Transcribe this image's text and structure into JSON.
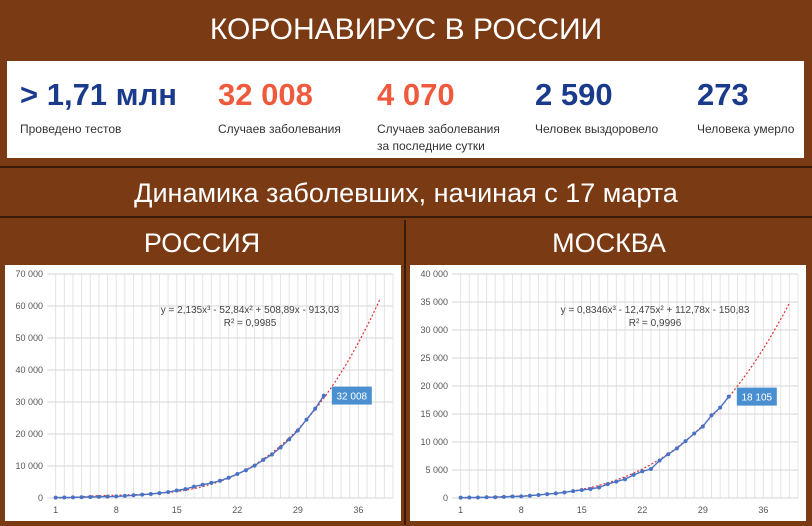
{
  "header": {
    "title": "КОРОНАВИРУС В РОССИИ"
  },
  "stats": [
    {
      "value": "> 1,71 млн",
      "label": "Проведено тестов",
      "color": "#1a3a8c"
    },
    {
      "value": "32 008",
      "label": "Случаев заболевания",
      "color": "#f05a3c"
    },
    {
      "value": "4 070",
      "label": "Случаев заболевания",
      "label2": "за последние сутки",
      "color": "#f05a3c"
    },
    {
      "value": "2 590",
      "label": "Человек выздоровело",
      "color": "#1a3a8c"
    },
    {
      "value": "273",
      "label": "Человека умерло",
      "color": "#1a3a8c"
    }
  ],
  "subtitle": "Динамика заболевших, начиная с 17 марта",
  "regions": {
    "left": "РОССИЯ",
    "right": "МОСКВА"
  },
  "chart_data": [
    {
      "type": "scatter",
      "title": "",
      "xlabel": "",
      "ylabel": "",
      "xlim": [
        0,
        40
      ],
      "ylim": [
        0,
        70000
      ],
      "xticks": [
        1,
        8,
        15,
        22,
        29,
        36
      ],
      "yticks": [
        0,
        10000,
        20000,
        30000,
        40000,
        50000,
        60000,
        70000
      ],
      "ytick_labels": [
        "0",
        "10 000",
        "20 000",
        "30 000",
        "40 000",
        "50 000",
        "60 000",
        "70 000"
      ],
      "grid": true,
      "x": [
        1,
        2,
        3,
        4,
        5,
        6,
        7,
        8,
        9,
        10,
        11,
        12,
        13,
        14,
        15,
        16,
        17,
        18,
        19,
        20,
        21,
        22,
        23,
        24,
        25,
        26,
        27,
        28,
        29,
        30,
        31,
        32
      ],
      "y": [
        114,
        147,
        199,
        253,
        306,
        367,
        438,
        495,
        658,
        840,
        1036,
        1264,
        1534,
        1836,
        2337,
        2777,
        3548,
        4149,
        4731,
        5389,
        6343,
        7497,
        8672,
        10131,
        11917,
        13584,
        15770,
        18328,
        21102,
        24490,
        27938,
        32008
      ],
      "trend": {
        "equation": "y = 2,135x³ - 52,84x² + 508,89x - 913,03",
        "r2": "R² = 0,9985",
        "a": 2.135,
        "b": -52.84,
        "c": 508.89,
        "d": -913.03,
        "x_end": 38.5
      },
      "last_label": "32 008",
      "colors": {
        "points": "#4a72c4",
        "trend": "#e03030",
        "badge": "#4a8fcf"
      }
    },
    {
      "type": "scatter",
      "title": "",
      "xlabel": "",
      "ylabel": "",
      "xlim": [
        0,
        40
      ],
      "ylim": [
        0,
        40000
      ],
      "xticks": [
        1,
        8,
        15,
        22,
        29,
        36
      ],
      "yticks": [
        0,
        5000,
        10000,
        15000,
        20000,
        25000,
        30000,
        35000,
        40000
      ],
      "ytick_labels": [
        "0",
        "5 000",
        "10 000",
        "15 000",
        "20 000",
        "25 000",
        "30 000",
        "35 000",
        "40 000"
      ],
      "grid": true,
      "x": [
        1,
        2,
        3,
        4,
        5,
        6,
        7,
        8,
        9,
        10,
        11,
        12,
        13,
        14,
        15,
        16,
        17,
        18,
        19,
        20,
        21,
        22,
        23,
        24,
        25,
        26,
        27,
        28,
        29,
        30,
        31,
        32
      ],
      "y": [
        56,
        86,
        98,
        131,
        137,
        191,
        262,
        290,
        410,
        546,
        703,
        817,
        1014,
        1226,
        1418,
        1613,
        1880,
        2475,
        2923,
        3357,
        4121,
        4775,
        5181,
        6698,
        7822,
        8852,
        10158,
        11513,
        12768,
        14776,
        16146,
        18105
      ],
      "trend": {
        "equation": "y = 0,8346x³ - 12,475x² + 112,78x - 150,83",
        "r2": "R² = 0,9996",
        "a": 0.8346,
        "b": -12.475,
        "c": 112.78,
        "d": -150.83,
        "x_end": 39
      },
      "last_label": "18 105",
      "colors": {
        "points": "#4a72c4",
        "trend": "#e03030",
        "badge": "#4a8fcf"
      }
    }
  ]
}
